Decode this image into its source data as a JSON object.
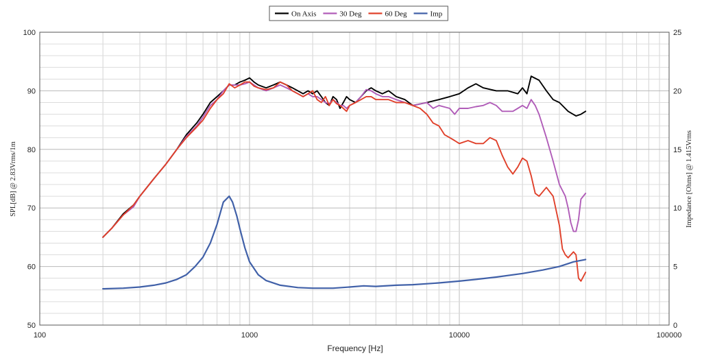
{
  "chart_data": {
    "type": "line",
    "xlabel": "Frequency [Hz]",
    "ylabel": "SPL[dB] @ 2.83Vrms/1m",
    "y2label": "Impedance [Ohms] @ 1.415Vrms",
    "x_scale": "log",
    "xlim": [
      100,
      100000
    ],
    "ylim": [
      50,
      100
    ],
    "y2lim": [
      0,
      25
    ],
    "x_ticks": [
      {
        "value": 100,
        "label": "100"
      },
      {
        "value": 1000,
        "label": "1000"
      },
      {
        "value": 10000,
        "label": "10000"
      },
      {
        "value": 100000,
        "label": "100000"
      }
    ],
    "y_ticks": [
      {
        "value": 50,
        "label": "50"
      },
      {
        "value": 60,
        "label": "60"
      },
      {
        "value": 70,
        "label": "70"
      },
      {
        "value": 80,
        "label": "80"
      },
      {
        "value": 90,
        "label": "90"
      },
      {
        "value": 100,
        "label": "100"
      }
    ],
    "y2_ticks": [
      {
        "value": 0,
        "label": "0"
      },
      {
        "value": 5,
        "label": "5"
      },
      {
        "value": 10,
        "label": "10"
      },
      {
        "value": 15,
        "label": "15"
      },
      {
        "value": 20,
        "label": "20"
      },
      {
        "value": 25,
        "label": "25"
      }
    ],
    "grid": true,
    "legend_position": "top-center",
    "series": [
      {
        "name": "On Axis",
        "color": "#000000",
        "axis": "left",
        "points": [
          [
            200,
            65
          ],
          [
            220,
            66.5
          ],
          [
            250,
            69
          ],
          [
            280,
            70.5
          ],
          [
            300,
            72
          ],
          [
            350,
            75
          ],
          [
            400,
            77.5
          ],
          [
            450,
            80
          ],
          [
            500,
            82.5
          ],
          [
            560,
            84.5
          ],
          [
            600,
            86
          ],
          [
            650,
            88
          ],
          [
            700,
            89
          ],
          [
            750,
            90
          ],
          [
            800,
            91
          ],
          [
            850,
            91
          ],
          [
            900,
            91.5
          ],
          [
            950,
            91.8
          ],
          [
            1000,
            92.2
          ],
          [
            1050,
            91.5
          ],
          [
            1100,
            91
          ],
          [
            1200,
            90.5
          ],
          [
            1300,
            91
          ],
          [
            1400,
            91.5
          ],
          [
            1500,
            91
          ],
          [
            1600,
            90.5
          ],
          [
            1700,
            90
          ],
          [
            1800,
            89.5
          ],
          [
            1900,
            90
          ],
          [
            2000,
            89.5
          ],
          [
            2100,
            90
          ],
          [
            2200,
            89
          ],
          [
            2300,
            88
          ],
          [
            2400,
            87.5
          ],
          [
            2500,
            89
          ],
          [
            2600,
            88.5
          ],
          [
            2700,
            87
          ],
          [
            2800,
            88
          ],
          [
            2900,
            89
          ],
          [
            3000,
            88.5
          ],
          [
            3200,
            88
          ],
          [
            3400,
            89
          ],
          [
            3600,
            90
          ],
          [
            3800,
            90.5
          ],
          [
            4000,
            90
          ],
          [
            4300,
            89.5
          ],
          [
            4600,
            90
          ],
          [
            5000,
            89
          ],
          [
            5500,
            88.5
          ],
          [
            6000,
            87.5
          ],
          [
            7000,
            88
          ],
          [
            8000,
            88.5
          ],
          [
            9000,
            89
          ],
          [
            10000,
            89.5
          ],
          [
            11000,
            90.5
          ],
          [
            12000,
            91.2
          ],
          [
            13000,
            90.5
          ],
          [
            15000,
            90
          ],
          [
            17000,
            90
          ],
          [
            19000,
            89.5
          ],
          [
            20000,
            90.5
          ],
          [
            21000,
            89.5
          ],
          [
            22000,
            92.5
          ],
          [
            24000,
            91.8
          ],
          [
            26000,
            90
          ],
          [
            28000,
            88.5
          ],
          [
            30000,
            88
          ],
          [
            33000,
            86.5
          ],
          [
            36000,
            85.7
          ],
          [
            38000,
            86
          ],
          [
            40000,
            86.5
          ]
        ]
      },
      {
        "name": "30 Deg",
        "color": "#b05cb8",
        "axis": "left",
        "points": [
          [
            200,
            65
          ],
          [
            220,
            66.5
          ],
          [
            250,
            68.8
          ],
          [
            280,
            70.2
          ],
          [
            300,
            72
          ],
          [
            350,
            75
          ],
          [
            400,
            77.5
          ],
          [
            450,
            80
          ],
          [
            500,
            82.2
          ],
          [
            560,
            84
          ],
          [
            600,
            85.5
          ],
          [
            650,
            87.5
          ],
          [
            700,
            88.5
          ],
          [
            750,
            90
          ],
          [
            800,
            91
          ],
          [
            850,
            91
          ],
          [
            900,
            91
          ],
          [
            950,
            91.2
          ],
          [
            1000,
            91.5
          ],
          [
            1050,
            91
          ],
          [
            1100,
            90.5
          ],
          [
            1200,
            90
          ],
          [
            1300,
            90.5
          ],
          [
            1400,
            91
          ],
          [
            1500,
            90.5
          ],
          [
            1600,
            90
          ],
          [
            1700,
            89.5
          ],
          [
            1800,
            89
          ],
          [
            1900,
            89.5
          ],
          [
            2000,
            89
          ],
          [
            2100,
            89
          ],
          [
            2200,
            88.5
          ],
          [
            2300,
            88
          ],
          [
            2400,
            87.8
          ],
          [
            2500,
            88.5
          ],
          [
            2600,
            88
          ],
          [
            2700,
            87.5
          ],
          [
            2800,
            87.5
          ],
          [
            2900,
            87
          ],
          [
            3000,
            87.5
          ],
          [
            3200,
            88
          ],
          [
            3400,
            89
          ],
          [
            3600,
            90.2
          ],
          [
            3800,
            90
          ],
          [
            4000,
            89.5
          ],
          [
            4300,
            89
          ],
          [
            4600,
            89
          ],
          [
            5000,
            88.5
          ],
          [
            5500,
            88
          ],
          [
            6000,
            87.5
          ],
          [
            7000,
            88
          ],
          [
            7500,
            87
          ],
          [
            8000,
            87.5
          ],
          [
            9000,
            87
          ],
          [
            9500,
            86
          ],
          [
            10000,
            87
          ],
          [
            11000,
            87
          ],
          [
            12000,
            87.3
          ],
          [
            13000,
            87.5
          ],
          [
            14000,
            88
          ],
          [
            15000,
            87.5
          ],
          [
            16000,
            86.5
          ],
          [
            17000,
            86.5
          ],
          [
            18000,
            86.5
          ],
          [
            19000,
            87
          ],
          [
            20000,
            87.5
          ],
          [
            21000,
            87
          ],
          [
            22000,
            88.5
          ],
          [
            23000,
            87.5
          ],
          [
            24000,
            86
          ],
          [
            26000,
            82
          ],
          [
            28000,
            78
          ],
          [
            30000,
            74
          ],
          [
            32000,
            72
          ],
          [
            33000,
            70
          ],
          [
            34000,
            67.5
          ],
          [
            35000,
            66
          ],
          [
            36000,
            66
          ],
          [
            37000,
            68
          ],
          [
            38000,
            71.5
          ],
          [
            40000,
            72.5
          ]
        ]
      },
      {
        "name": "60 Deg",
        "color": "#e0402a",
        "axis": "left",
        "points": [
          [
            200,
            65
          ],
          [
            220,
            66.5
          ],
          [
            250,
            68.8
          ],
          [
            280,
            70.5
          ],
          [
            300,
            72
          ],
          [
            350,
            75
          ],
          [
            400,
            77.5
          ],
          [
            450,
            80
          ],
          [
            500,
            82
          ],
          [
            560,
            83.8
          ],
          [
            600,
            85
          ],
          [
            650,
            87
          ],
          [
            700,
            88.5
          ],
          [
            750,
            89.5
          ],
          [
            800,
            91.2
          ],
          [
            850,
            90.5
          ],
          [
            900,
            91
          ],
          [
            950,
            91.5
          ],
          [
            1000,
            91.5
          ],
          [
            1050,
            90.8
          ],
          [
            1100,
            90.5
          ],
          [
            1200,
            90.2
          ],
          [
            1300,
            90.5
          ],
          [
            1400,
            91.5
          ],
          [
            1500,
            91
          ],
          [
            1600,
            90
          ],
          [
            1700,
            89.5
          ],
          [
            1800,
            89
          ],
          [
            1900,
            89.5
          ],
          [
            2000,
            90
          ],
          [
            2100,
            88.5
          ],
          [
            2200,
            88
          ],
          [
            2300,
            89
          ],
          [
            2400,
            87.5
          ],
          [
            2500,
            88.5
          ],
          [
            2600,
            87.8
          ],
          [
            2700,
            87.5
          ],
          [
            2800,
            87
          ],
          [
            2900,
            86.5
          ],
          [
            3000,
            87.5
          ],
          [
            3200,
            88
          ],
          [
            3400,
            88.5
          ],
          [
            3600,
            89
          ],
          [
            3800,
            89
          ],
          [
            4000,
            88.5
          ],
          [
            4300,
            88.5
          ],
          [
            4600,
            88.5
          ],
          [
            5000,
            88
          ],
          [
            5500,
            88
          ],
          [
            6000,
            87.5
          ],
          [
            6500,
            87
          ],
          [
            7000,
            86
          ],
          [
            7500,
            84.5
          ],
          [
            8000,
            84
          ],
          [
            8500,
            82.5
          ],
          [
            9000,
            82
          ],
          [
            9500,
            81.5
          ],
          [
            10000,
            81
          ],
          [
            11000,
            81.5
          ],
          [
            12000,
            81
          ],
          [
            13000,
            81
          ],
          [
            14000,
            82
          ],
          [
            15000,
            81.5
          ],
          [
            16000,
            79
          ],
          [
            17000,
            77
          ],
          [
            18000,
            75.8
          ],
          [
            19000,
            77
          ],
          [
            20000,
            78.5
          ],
          [
            21000,
            78
          ],
          [
            22000,
            75.5
          ],
          [
            23000,
            72.5
          ],
          [
            24000,
            72
          ],
          [
            26000,
            73.5
          ],
          [
            28000,
            72
          ],
          [
            30000,
            67
          ],
          [
            31000,
            63
          ],
          [
            32000,
            62
          ],
          [
            33000,
            61.5
          ],
          [
            34000,
            62
          ],
          [
            35000,
            62.5
          ],
          [
            36000,
            62
          ],
          [
            37000,
            58
          ],
          [
            38000,
            57.5
          ],
          [
            40000,
            59
          ]
        ]
      },
      {
        "name": "Imp",
        "color": "#4060a8",
        "axis": "right",
        "points": [
          [
            200,
            3.1
          ],
          [
            250,
            3.15
          ],
          [
            300,
            3.25
          ],
          [
            350,
            3.4
          ],
          [
            400,
            3.6
          ],
          [
            450,
            3.9
          ],
          [
            500,
            4.3
          ],
          [
            550,
            5
          ],
          [
            600,
            5.8
          ],
          [
            650,
            7
          ],
          [
            700,
            8.6
          ],
          [
            750,
            10.5
          ],
          [
            800,
            11
          ],
          [
            830,
            10.5
          ],
          [
            870,
            9.3
          ],
          [
            900,
            8.2
          ],
          [
            950,
            6.6
          ],
          [
            1000,
            5.4
          ],
          [
            1100,
            4.3
          ],
          [
            1200,
            3.8
          ],
          [
            1400,
            3.4
          ],
          [
            1700,
            3.2
          ],
          [
            2000,
            3.15
          ],
          [
            2500,
            3.15
          ],
          [
            3000,
            3.25
          ],
          [
            3500,
            3.35
          ],
          [
            4000,
            3.3
          ],
          [
            5000,
            3.4
          ],
          [
            6000,
            3.45
          ],
          [
            8000,
            3.6
          ],
          [
            10000,
            3.75
          ],
          [
            12000,
            3.9
          ],
          [
            15000,
            4.1
          ],
          [
            20000,
            4.4
          ],
          [
            25000,
            4.7
          ],
          [
            30000,
            5
          ],
          [
            35000,
            5.4
          ],
          [
            40000,
            5.6
          ]
        ]
      }
    ]
  }
}
